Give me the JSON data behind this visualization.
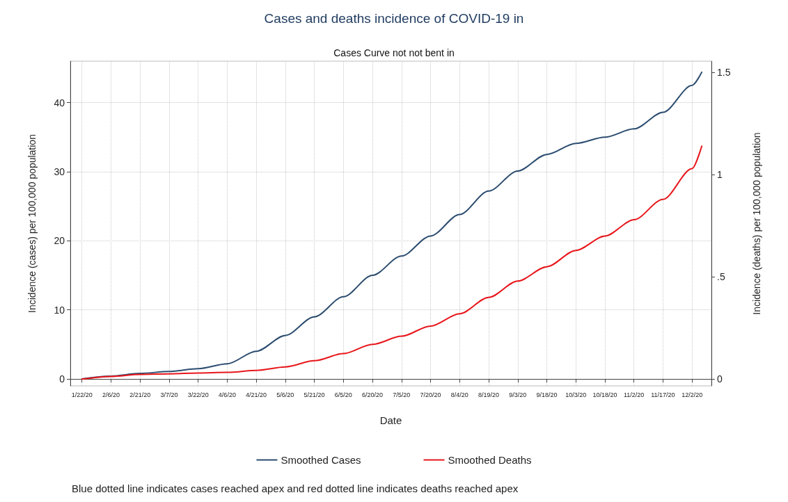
{
  "chart_data": {
    "type": "line",
    "title": "Cases and deaths incidence of COVID-19 in",
    "subtitle": "Cases Curve not not bent in",
    "xlabel": "Date",
    "ylabel": "Incidence (cases) per 100,000 population",
    "y2label": "Incidence (deaths) per 100,000 population",
    "x": [
      "2020-01-22",
      "2020-02-06",
      "2020-02-21",
      "2020-03-07",
      "2020-03-22",
      "2020-04-06",
      "2020-04-21",
      "2020-05-06",
      "2020-05-21",
      "2020-06-05",
      "2020-06-20",
      "2020-07-05",
      "2020-07-20",
      "2020-08-04",
      "2020-08-19",
      "2020-09-03",
      "2020-09-18",
      "2020-10-03",
      "2020-10-18",
      "2020-11-02",
      "2020-11-17",
      "2020-12-02",
      "2020-12-07"
    ],
    "series": [
      {
        "name": "Smoothed Cases",
        "color": "#2b4c6f",
        "values": [
          0,
          0.4,
          0.8,
          1.1,
          1.5,
          2.2,
          4.0,
          6.3,
          9.0,
          11.9,
          15.0,
          17.8,
          20.7,
          23.8,
          27.2,
          30.1,
          32.5,
          34.1,
          35.0,
          36.2,
          38.6,
          42.5,
          44.4
        ]
      },
      {
        "name": "Smoothed Deaths",
        "color": "#e8161b",
        "axis": "y2",
        "values": [
          0,
          0.013,
          0.023,
          0.026,
          0.03,
          0.033,
          0.043,
          0.06,
          0.09,
          0.125,
          0.17,
          0.21,
          0.26,
          0.32,
          0.4,
          0.48,
          0.55,
          0.63,
          0.7,
          0.78,
          0.88,
          1.03,
          1.14
        ]
      }
    ],
    "xlim": [
      "2020-01-16",
      "2020-12-12"
    ],
    "xticks": [
      {
        "value": "2020-01-22",
        "label": "1/22/20"
      },
      {
        "value": "2020-02-06",
        "label": "2/6/20"
      },
      {
        "value": "2020-02-21",
        "label": "2/21/20"
      },
      {
        "value": "2020-03-07",
        "label": "3/7/20"
      },
      {
        "value": "2020-03-22",
        "label": "3/22/20"
      },
      {
        "value": "2020-04-06",
        "label": "4/6/20"
      },
      {
        "value": "2020-04-21",
        "label": "4/21/20"
      },
      {
        "value": "2020-05-06",
        "label": "5/6/20"
      },
      {
        "value": "2020-05-21",
        "label": "5/21/20"
      },
      {
        "value": "2020-06-05",
        "label": "6/5/20"
      },
      {
        "value": "2020-06-20",
        "label": "6/20/20"
      },
      {
        "value": "2020-07-05",
        "label": "7/5/20"
      },
      {
        "value": "2020-07-20",
        "label": "7/20/20"
      },
      {
        "value": "2020-08-04",
        "label": "8/4/20"
      },
      {
        "value": "2020-08-19",
        "label": "8/19/20"
      },
      {
        "value": "2020-09-03",
        "label": "9/3/20"
      },
      {
        "value": "2020-09-18",
        "label": "9/18/20"
      },
      {
        "value": "2020-10-03",
        "label": "10/3/20"
      },
      {
        "value": "2020-10-18",
        "label": "10/18/20"
      },
      {
        "value": "2020-11-02",
        "label": "11/2/20"
      },
      {
        "value": "2020-11-17",
        "label": "11/17/20"
      },
      {
        "value": "2020-12-02",
        "label": "12/2/20"
      }
    ],
    "ylim": [
      -1,
      46
    ],
    "yticks": [
      0,
      10,
      20,
      30,
      40
    ],
    "y2lim": [
      -0.033,
      1.556
    ],
    "y2ticks": [
      0,
      {
        "value": 0.5,
        "label": ".5"
      },
      1,
      1.5
    ],
    "grid": true,
    "legend": "bottom",
    "marker": "none",
    "line_style": "solid",
    "annotations": [
      "Blue dotted line indicates cases reached apex and red dotted line indicates deaths reached apex"
    ]
  }
}
